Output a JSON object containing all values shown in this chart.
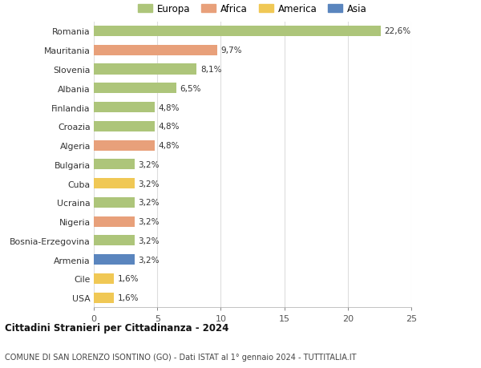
{
  "countries": [
    "Romania",
    "Mauritania",
    "Slovenia",
    "Albania",
    "Finlandia",
    "Croazia",
    "Algeria",
    "Bulgaria",
    "Cuba",
    "Ucraina",
    "Nigeria",
    "Bosnia-Erzegovina",
    "Armenia",
    "Cile",
    "USA"
  ],
  "values": [
    22.6,
    9.7,
    8.1,
    6.5,
    4.8,
    4.8,
    4.8,
    3.2,
    3.2,
    3.2,
    3.2,
    3.2,
    3.2,
    1.6,
    1.6
  ],
  "labels": [
    "22,6%",
    "9,7%",
    "8,1%",
    "6,5%",
    "4,8%",
    "4,8%",
    "4,8%",
    "3,2%",
    "3,2%",
    "3,2%",
    "3,2%",
    "3,2%",
    "3,2%",
    "1,6%",
    "1,6%"
  ],
  "continents": [
    "Europa",
    "Africa",
    "Europa",
    "Europa",
    "Europa",
    "Europa",
    "Africa",
    "Europa",
    "America",
    "Europa",
    "Africa",
    "Europa",
    "Asia",
    "America",
    "America"
  ],
  "colors": {
    "Europa": "#adc57a",
    "Africa": "#e8a07a",
    "America": "#f0c855",
    "Asia": "#5a85be"
  },
  "legend_order": [
    "Europa",
    "Africa",
    "America",
    "Asia"
  ],
  "title": "Cittadini Stranieri per Cittadinanza - 2024",
  "subtitle": "COMUNE DI SAN LORENZO ISONTINO (GO) - Dati ISTAT al 1° gennaio 2024 - TUTTITALIA.IT",
  "xlim": [
    0,
    25
  ],
  "xticks": [
    0,
    5,
    10,
    15,
    20,
    25
  ],
  "background_color": "#ffffff",
  "grid_color": "#dddddd"
}
